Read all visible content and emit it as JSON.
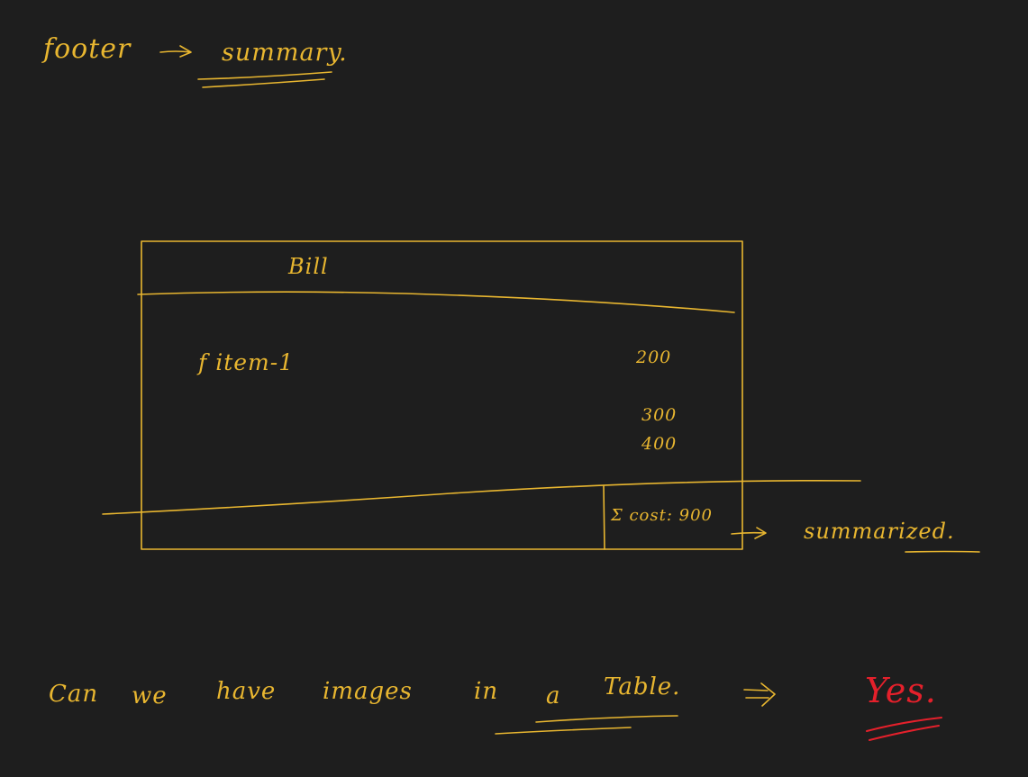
{
  "colors": {
    "background": "#1e1e1e",
    "ink_yellow": "#e8b630",
    "ink_red": "#e4202b"
  },
  "heading": {
    "left": "footer",
    "arrow": "→",
    "right": "summary."
  },
  "bill": {
    "title": "Bill",
    "item_label": "f item-1",
    "amounts": [
      "200",
      "300",
      "400"
    ],
    "total": "Σ cost: 900"
  },
  "annotation": {
    "arrow": "→",
    "text": "summarized."
  },
  "question": {
    "words": [
      "Can",
      "we",
      "have",
      "images",
      "in",
      "a",
      "Table."
    ],
    "implies": "⇒",
    "answer": "Yes."
  }
}
